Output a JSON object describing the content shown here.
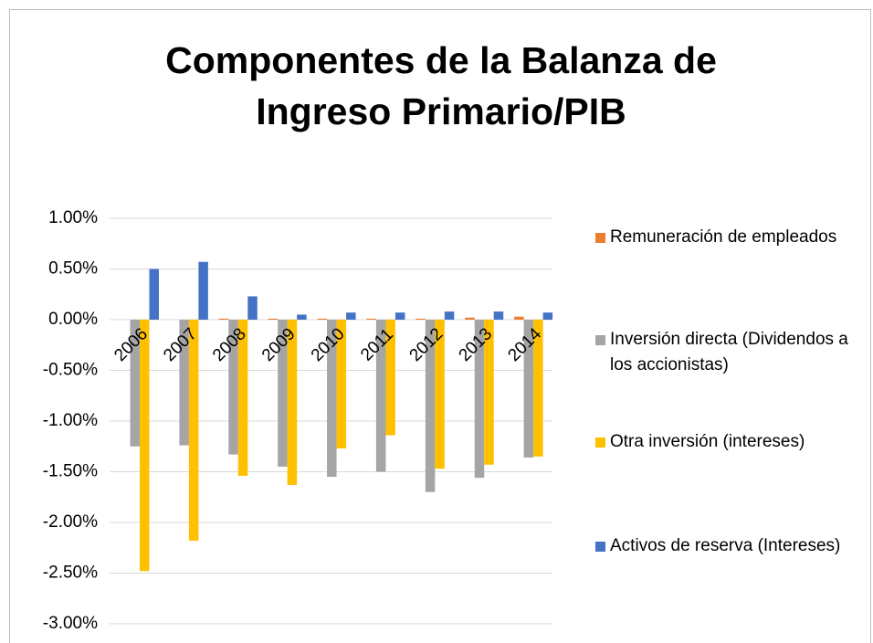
{
  "chart_data": {
    "type": "bar",
    "title": "Componentes de la Balanza de Ingreso Primario/PIB",
    "categories": [
      "2006",
      "2007",
      "2008",
      "2009",
      "2010",
      "2011",
      "2012",
      "2013",
      "2014"
    ],
    "series": [
      {
        "name": "Remuneración de empleados",
        "color": "#ed7d31",
        "values": [
          0,
          0,
          0.01,
          0.01,
          0.01,
          0.01,
          0.01,
          0.02,
          0.03
        ]
      },
      {
        "name": "Inversión directa (Dividendos a los accionistas)",
        "color": "#a5a5a5",
        "values": [
          -1.25,
          -1.24,
          -1.33,
          -1.45,
          -1.55,
          -1.5,
          -1.7,
          -1.56,
          -1.36
        ]
      },
      {
        "name": "Otra inversión (intereses)",
        "color": "#ffc000",
        "values": [
          -2.48,
          -2.18,
          -1.54,
          -1.63,
          -1.27,
          -1.14,
          -1.47,
          -1.43,
          -1.35
        ]
      },
      {
        "name": "Activos de reserva (Intereses)",
        "color": "#4472c4",
        "values": [
          0.5,
          0.57,
          0.23,
          0.05,
          0.07,
          0.07,
          0.08,
          0.08,
          0.07
        ]
      }
    ],
    "ylim": [
      -3,
      1
    ],
    "yticks": [
      {
        "value": -3,
        "label": "-3.00%"
      },
      {
        "value": -2.5,
        "label": "-2.50%"
      },
      {
        "value": -2,
        "label": "-2.00%"
      },
      {
        "value": -1.5,
        "label": "-1.50%"
      },
      {
        "value": -1,
        "label": "-1.00%"
      },
      {
        "value": -0.5,
        "label": "-0.50%"
      },
      {
        "value": 0,
        "label": "0.00%"
      },
      {
        "value": 0.5,
        "label": "0.50%"
      },
      {
        "value": 1,
        "label": "1.00%"
      }
    ],
    "grid": true,
    "legend": "right"
  }
}
